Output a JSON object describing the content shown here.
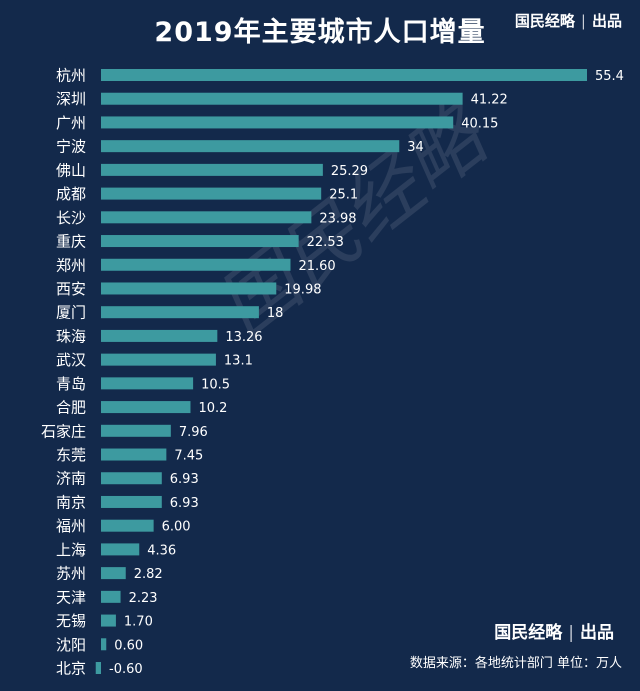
{
  "title": "2019年主要城市人口增量",
  "brand": {
    "name": "国民经略",
    "suffix": "出品"
  },
  "watermark": "国民经略",
  "source": "数据来源：各地统计部门  单位：万人",
  "colors": {
    "background": "#13294b",
    "bar": "#3d9aa0",
    "text": "#ffffff"
  },
  "chart_data": {
    "type": "bar",
    "orientation": "horizontal",
    "title": "2019年主要城市人口增量",
    "categories": [
      "杭州",
      "深圳",
      "广州",
      "宁波",
      "佛山",
      "成都",
      "长沙",
      "重庆",
      "郑州",
      "西安",
      "厦门",
      "珠海",
      "武汉",
      "青岛",
      "合肥",
      "石家庄",
      "东莞",
      "济南",
      "南京",
      "福州",
      "上海",
      "苏州",
      "天津",
      "无锡",
      "沈阳",
      "北京"
    ],
    "values": [
      55.4,
      41.22,
      40.15,
      34,
      25.29,
      25.1,
      23.98,
      22.53,
      21.6,
      19.98,
      18,
      13.26,
      13.1,
      10.5,
      10.2,
      7.96,
      7.45,
      6.93,
      6.93,
      6.0,
      4.36,
      2.82,
      2.23,
      1.7,
      0.6,
      -0.6
    ],
    "value_labels": [
      "55.4",
      "41.22",
      "40.15",
      "34",
      "25.29",
      "25.1",
      "23.98",
      "22.53",
      "21.60",
      "19.98",
      "18",
      "13.26",
      "13.1",
      "10.5",
      "10.2",
      "7.96",
      "7.45",
      "6.93",
      "6.93",
      "6.00",
      "4.36",
      "2.82",
      "2.23",
      "1.70",
      "0.60",
      "-0.60"
    ],
    "unit": "万人",
    "grid": false,
    "legend": "none"
  }
}
